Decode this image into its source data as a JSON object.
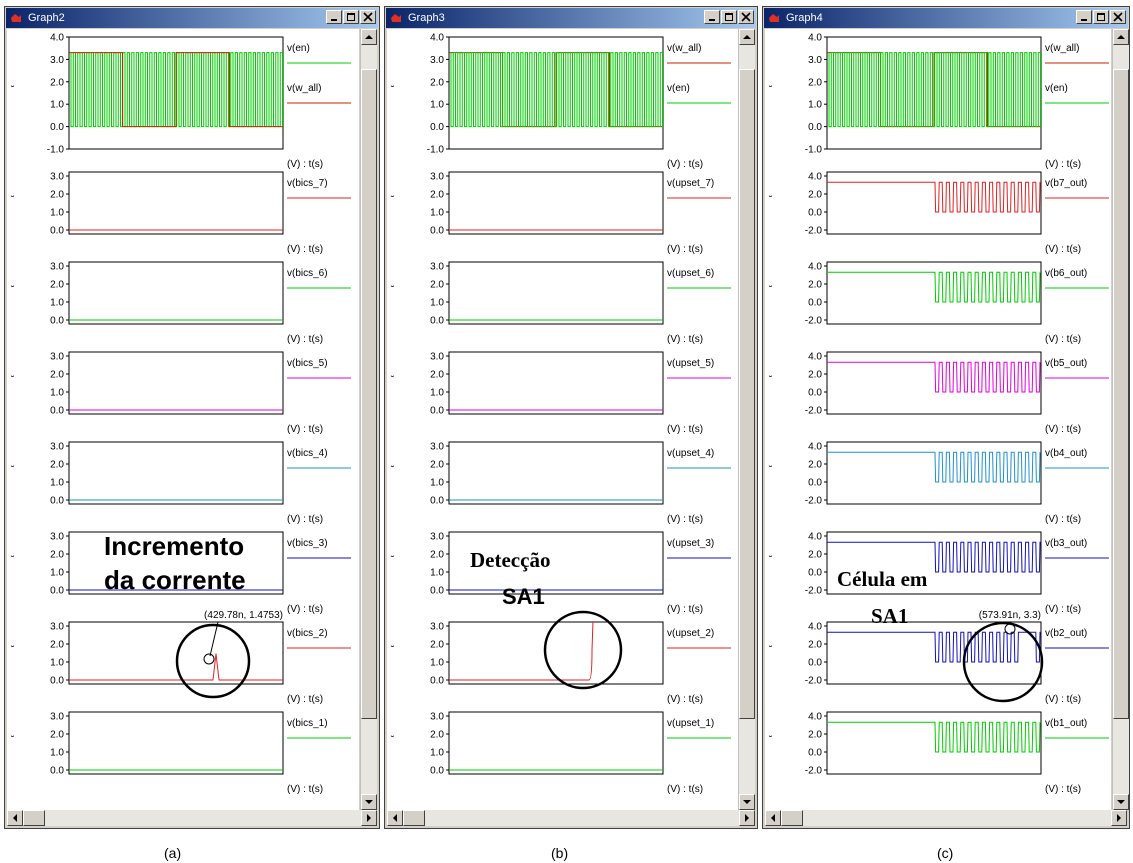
{
  "windows": [
    {
      "title": "Graph2",
      "caption": "(a)",
      "annotation": {
        "text1": "Incremento",
        "text2": "da corrente",
        "cursor": "(429.78n, 1.4753)"
      },
      "plots": [
        {
          "ticks": [
            "4.0",
            "3.0",
            "2.0",
            "1.0",
            "0.0",
            "-1.0"
          ],
          "signals": [
            {
              "label": "v(en)",
              "color": "#00cc00",
              "type": "clock"
            },
            {
              "label": "v(w_all)",
              "color": "#cc2200",
              "type": "square"
            }
          ],
          "axis": "(V) : t(s)"
        },
        {
          "ticks": [
            "3.0",
            "2.0",
            "1.0",
            "0.0"
          ],
          "signals": [
            {
              "label": "v(bics_7)",
              "color": "#e02020",
              "type": "flat"
            }
          ],
          "axis": "(V) : t(s)"
        },
        {
          "ticks": [
            "3.0",
            "2.0",
            "1.0",
            "0.0"
          ],
          "signals": [
            {
              "label": "v(bics_6)",
              "color": "#00cc00",
              "type": "flat"
            }
          ],
          "axis": "(V) : t(s)"
        },
        {
          "ticks": [
            "3.0",
            "2.0",
            "1.0",
            "0.0"
          ],
          "signals": [
            {
              "label": "v(bics_5)",
              "color": "#e000e0",
              "type": "flat"
            }
          ],
          "axis": "(V) : t(s)"
        },
        {
          "ticks": [
            "3.0",
            "2.0",
            "1.0",
            "0.0"
          ],
          "signals": [
            {
              "label": "v(bics_4)",
              "color": "#2090c0",
              "type": "flat"
            }
          ],
          "axis": "(V) : t(s)"
        },
        {
          "ticks": [
            "3.0",
            "2.0",
            "1.0",
            "0.0"
          ],
          "signals": [
            {
              "label": "v(bics_3)",
              "color": "#1010c0",
              "type": "flat"
            }
          ],
          "axis": "(V) : t(s)"
        },
        {
          "ticks": [
            "3.0",
            "2.0",
            "1.0",
            "0.0"
          ],
          "signals": [
            {
              "label": "v(bics_2)",
              "color": "#e02020",
              "type": "spike"
            }
          ],
          "axis": "(V) : t(s)"
        },
        {
          "ticks": [
            "3.0",
            "2.0",
            "1.0",
            "0.0"
          ],
          "signals": [
            {
              "label": "v(bics_1)",
              "color": "#00cc00",
              "type": "flat"
            }
          ],
          "axis": "(V) : t(s)"
        }
      ]
    },
    {
      "title": "Graph3",
      "caption": "(b)",
      "annotation": {
        "text1": "Detecção",
        "text2": "SA1"
      },
      "plots": [
        {
          "ticks": [
            "4.0",
            "3.0",
            "2.0",
            "1.0",
            "0.0",
            "-1.0"
          ],
          "signals": [
            {
              "label": "v(w_all)",
              "color": "#cc2200",
              "type": "square"
            },
            {
              "label": "v(en)",
              "color": "#00cc00",
              "type": "clock"
            }
          ],
          "axis": "(V) : t(s)"
        },
        {
          "ticks": [
            "3.0",
            "2.0",
            "1.0",
            "0.0"
          ],
          "signals": [
            {
              "label": "v(upset_7)",
              "color": "#e02020",
              "type": "flat"
            }
          ],
          "axis": "(V) : t(s)"
        },
        {
          "ticks": [
            "3.0",
            "2.0",
            "1.0",
            "0.0"
          ],
          "signals": [
            {
              "label": "v(upset_6)",
              "color": "#00cc00",
              "type": "flat"
            }
          ],
          "axis": "(V) : t(s)"
        },
        {
          "ticks": [
            "3.0",
            "2.0",
            "1.0",
            "0.0"
          ],
          "signals": [
            {
              "label": "v(upset_5)",
              "color": "#e000e0",
              "type": "flat"
            }
          ],
          "axis": "(V) : t(s)"
        },
        {
          "ticks": [
            "3.0",
            "2.0",
            "1.0",
            "0.0"
          ],
          "signals": [
            {
              "label": "v(upset_4)",
              "color": "#2090c0",
              "type": "flat"
            }
          ],
          "axis": "(V) : t(s)"
        },
        {
          "ticks": [
            "3.0",
            "2.0",
            "1.0",
            "0.0"
          ],
          "signals": [
            {
              "label": "v(upset_3)",
              "color": "#1010c0",
              "type": "flat"
            }
          ],
          "axis": "(V) : t(s)"
        },
        {
          "ticks": [
            "3.0",
            "2.0",
            "1.0",
            "0.0"
          ],
          "signals": [
            {
              "label": "v(upset_2)",
              "color": "#e02020",
              "type": "step"
            }
          ],
          "axis": "(V) : t(s)"
        },
        {
          "ticks": [
            "3.0",
            "2.0",
            "1.0",
            "0.0"
          ],
          "signals": [
            {
              "label": "v(upset_1)",
              "color": "#00cc00",
              "type": "flat"
            }
          ],
          "axis": "(V) : t(s)"
        }
      ]
    },
    {
      "title": "Graph4",
      "caption": "(c)",
      "annotation": {
        "text1": "Célula em",
        "text2": "SA1",
        "cursor": "(573.91n, 3.3)"
      },
      "plots": [
        {
          "ticks": [
            "4.0",
            "3.0",
            "2.0",
            "1.0",
            "0.0",
            "-1.0"
          ],
          "signals": [
            {
              "label": "v(w_all)",
              "color": "#cc2200",
              "type": "square"
            },
            {
              "label": "v(en)",
              "color": "#00cc00",
              "type": "clock"
            }
          ],
          "axis": "(V) : t(s)"
        },
        {
          "ticks": [
            "4.0",
            "2.0",
            "0.0",
            "-2.0"
          ],
          "signals": [
            {
              "label": "v(b7_out)",
              "color": "#e02020",
              "type": "pulses"
            }
          ],
          "axis": "(V) : t(s)"
        },
        {
          "ticks": [
            "4.0",
            "2.0",
            "0.0",
            "-2.0"
          ],
          "signals": [
            {
              "label": "v(b6_out)",
              "color": "#00cc00",
              "type": "pulses"
            }
          ],
          "axis": "(V) : t(s)"
        },
        {
          "ticks": [
            "4.0",
            "2.0",
            "0.0",
            "-2.0"
          ],
          "signals": [
            {
              "label": "v(b5_out)",
              "color": "#e000e0",
              "type": "pulses"
            }
          ],
          "axis": "(V) : t(s)"
        },
        {
          "ticks": [
            "4.0",
            "2.0",
            "0.0",
            "-2.0"
          ],
          "signals": [
            {
              "label": "v(b4_out)",
              "color": "#2090d0",
              "type": "pulses"
            }
          ],
          "axis": "(V) : t(s)"
        },
        {
          "ticks": [
            "4.0",
            "2.0",
            "0.0",
            "-2.0"
          ],
          "signals": [
            {
              "label": "v(b3_out)",
              "color": "#1010c0",
              "type": "pulses"
            }
          ],
          "axis": "(V) : t(s)"
        },
        {
          "ticks": [
            "4.0",
            "2.0",
            "0.0",
            "-2.0"
          ],
          "signals": [
            {
              "label": "v(b2_out)",
              "color": "#1010c0",
              "type": "pulses_sa1"
            }
          ],
          "axis": "(V) : t(s)"
        },
        {
          "ticks": [
            "4.0",
            "2.0",
            "0.0",
            "-2.0"
          ],
          "signals": [
            {
              "label": "v(b1_out)",
              "color": "#00cc00",
              "type": "pulses"
            }
          ],
          "axis": "(V) : t(s)"
        }
      ]
    }
  ]
}
